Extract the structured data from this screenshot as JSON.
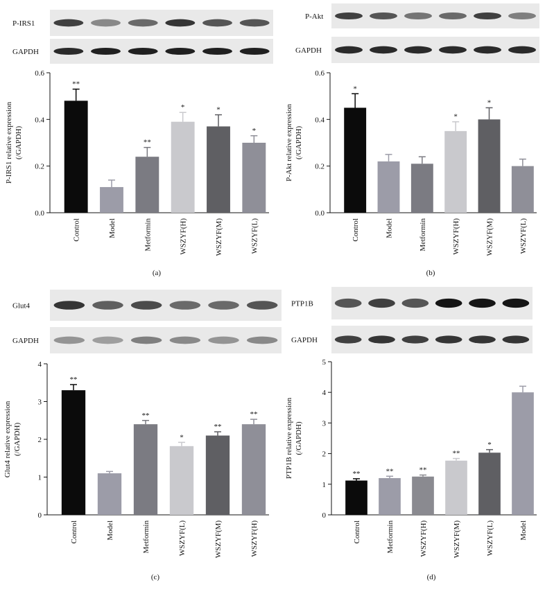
{
  "chart_data": [
    {
      "type": "bar",
      "caption": "(a)",
      "blot_labels": [
        "P-IRS1",
        "GAPDH"
      ],
      "ylabel": [
        "P-IRS1 relative expression",
        "(/GAPDH)"
      ],
      "categories": [
        "Control",
        "Model",
        "Metformin",
        "WSZYF(H)",
        "WSZYF(M)",
        "WSZYF(L)"
      ],
      "values": [
        0.48,
        0.11,
        0.24,
        0.39,
        0.37,
        0.3
      ],
      "errors": [
        0.05,
        0.03,
        0.04,
        0.04,
        0.05,
        0.03
      ],
      "significance": [
        "**",
        null,
        "**",
        "*",
        "*",
        "*"
      ],
      "colors": [
        "#0b0b0b",
        "#9c9ca8",
        "#7b7b82",
        "#c9c9cd",
        "#5f5f63",
        "#8f8f98"
      ],
      "ylim": [
        0,
        0.6
      ],
      "yticks": [
        {
          "value": 0,
          "label": "0.0"
        },
        0.2,
        0.4,
        0.6
      ]
    },
    {
      "type": "bar",
      "caption": "(b)",
      "blot_labels": [
        "P-Akt",
        "GAPDH"
      ],
      "ylabel": [
        "P-Akt relative expression",
        "(/GAPDH)"
      ],
      "categories": [
        "Control",
        "Model",
        "Metformin",
        "WSZYF(H)",
        "WSZYF(M)",
        "WSZYF(L)"
      ],
      "values": [
        0.45,
        0.22,
        0.21,
        0.35,
        0.4,
        0.2
      ],
      "errors": [
        0.06,
        0.03,
        0.03,
        0.04,
        0.05,
        0.03
      ],
      "significance": [
        "*",
        null,
        null,
        "*",
        "*",
        null
      ],
      "colors": [
        "#0b0b0b",
        "#9c9ca8",
        "#7b7b82",
        "#c9c9cd",
        "#5f5f63",
        "#8f8f98"
      ],
      "ylim": [
        0,
        0.6
      ],
      "yticks": [
        {
          "value": 0,
          "label": "0.0"
        },
        0.2,
        0.4,
        0.6
      ]
    },
    {
      "type": "bar",
      "caption": "(c)",
      "blot_labels": [
        "Glut4",
        "GAPDH"
      ],
      "ylabel": [
        "Glut4 relative expression",
        "(/GAPDH)"
      ],
      "categories": [
        "Control",
        "Model",
        "Metformin",
        "WSZYF(L)",
        "WSZYF(M)",
        "WSZYF(H)"
      ],
      "values": [
        3.3,
        1.1,
        2.4,
        1.82,
        2.1,
        2.4
      ],
      "errors": [
        0.15,
        0.05,
        0.1,
        0.1,
        0.1,
        0.13
      ],
      "significance": [
        "**",
        null,
        "**",
        "*",
        "**",
        "**"
      ],
      "colors": [
        "#0b0b0b",
        "#9c9ca8",
        "#7b7b82",
        "#c9c9cd",
        "#5f5f63",
        "#8f8f98"
      ],
      "ylim": [
        0,
        4
      ],
      "yticks": [
        0,
        1,
        2,
        3,
        4
      ]
    },
    {
      "type": "bar",
      "caption": "(d)",
      "blot_labels": [
        "PTP1B",
        "GAPDH"
      ],
      "ylabel": [
        "PTP1B relative expression",
        "(/GAPDH)"
      ],
      "categories": [
        "Control",
        "Metformin",
        "WSZYF(H)",
        "WSZYF(M)",
        "WSZYF(L)",
        "Model"
      ],
      "values": [
        1.12,
        1.2,
        1.25,
        1.77,
        2.03,
        4.0
      ],
      "errors": [
        0.06,
        0.06,
        0.05,
        0.07,
        0.1,
        0.2
      ],
      "significance": [
        "**",
        "**",
        "**",
        "**",
        "*",
        null
      ],
      "colors": [
        "#0b0b0b",
        "#9c9ca8",
        "#8a8a90",
        "#c9c9cd",
        "#5f5f63",
        "#9c9ca8"
      ],
      "ylim": [
        0,
        5
      ],
      "yticks": [
        0,
        1,
        2,
        3,
        4,
        5
      ]
    }
  ]
}
